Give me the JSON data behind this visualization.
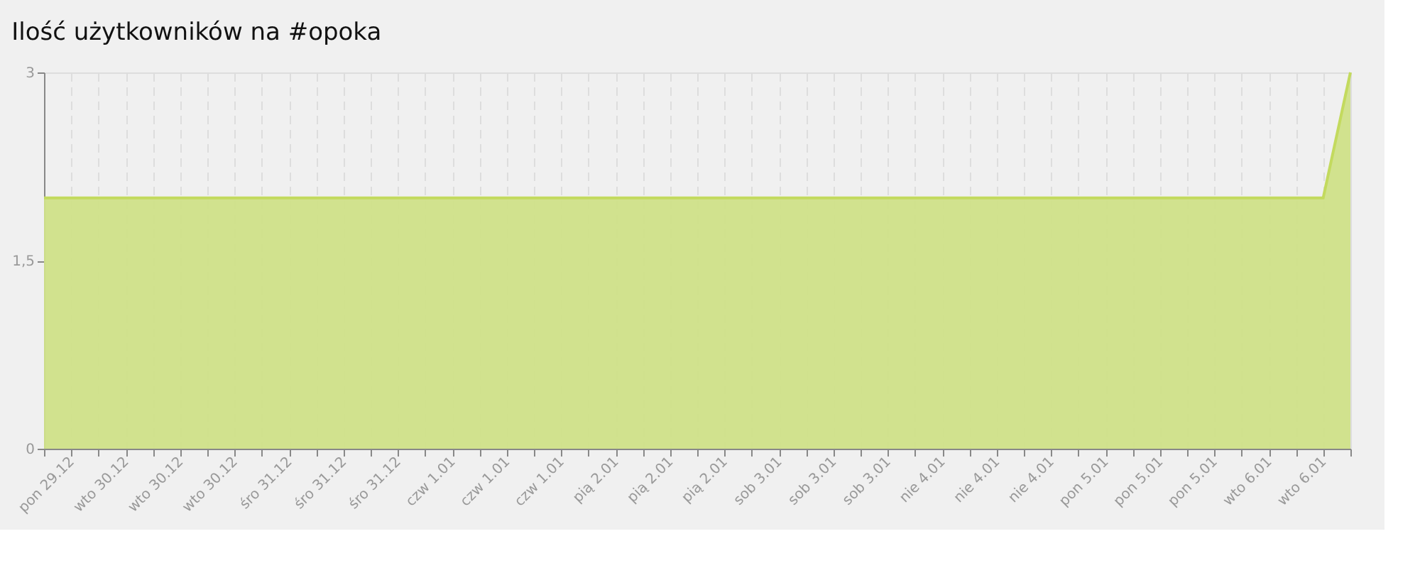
{
  "chart_data": {
    "type": "area",
    "title": "Ilość użytkowników na #opoka",
    "categories": [
      null,
      "pon 29.12",
      null,
      "wto 30.12",
      null,
      "wto 30.12",
      null,
      "wto 30.12",
      null,
      "śro 31.12",
      null,
      "śro 31.12",
      null,
      "śro 31.12",
      null,
      "czw 1.01",
      null,
      "czw 1.01",
      null,
      "czw 1.01",
      null,
      "pią 2.01",
      null,
      "pią 2.01",
      null,
      "pią 2.01",
      null,
      "sob 3.01",
      null,
      "sob 3.01",
      null,
      "sob 3.01",
      null,
      "nie 4.01",
      null,
      "nie 4.01",
      null,
      "nie 4.01",
      null,
      "pon 5.01",
      null,
      "pon 5.01",
      null,
      "pon 5.01",
      null,
      "wto 6.01",
      null,
      "wto 6.01",
      null
    ],
    "series": [
      {
        "color": "#cfe088",
        "values": [
          2,
          2,
          2,
          2,
          2,
          2,
          2,
          2,
          2,
          2,
          2,
          2,
          2,
          2,
          2,
          2,
          2,
          2,
          2,
          2,
          2,
          2,
          2,
          2,
          2,
          2,
          2,
          2,
          2,
          2,
          2,
          2,
          2,
          2,
          2,
          2,
          2,
          2,
          2,
          2,
          2,
          2,
          2,
          2,
          2,
          2,
          2,
          2,
          3
        ]
      }
    ],
    "ylim": [
      0,
      3
    ],
    "yticks": [
      0,
      {
        "value": 1.5,
        "label": "1,5"
      },
      3
    ],
    "grid": "x"
  }
}
